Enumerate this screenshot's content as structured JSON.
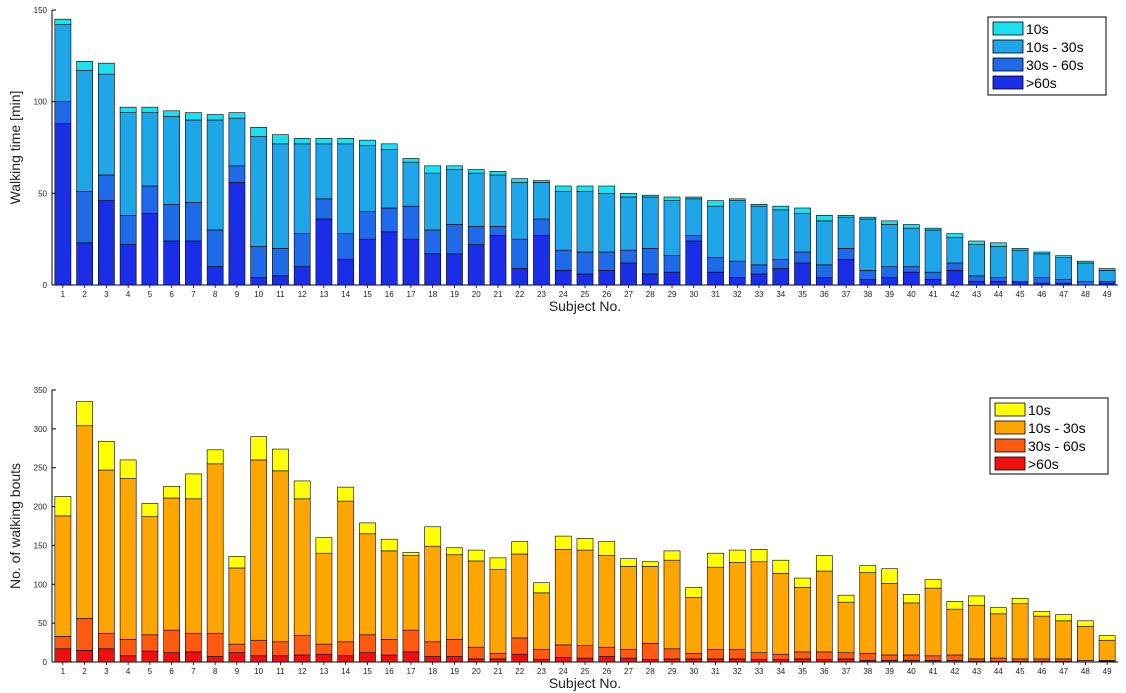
{
  "chart_data": [
    {
      "type": "bar",
      "stacked": true,
      "xlabel": "Subject No.",
      "ylabel": "Walking time [min]",
      "ylim": [
        0,
        150
      ],
      "yticks": [
        0,
        50,
        100,
        150
      ],
      "legend_position": "top-right",
      "categories": [
        "1",
        "2",
        "3",
        "4",
        "5",
        "6",
        "7",
        "8",
        "9",
        "10",
        "11",
        "12",
        "13",
        "14",
        "15",
        "16",
        "17",
        "18",
        "19",
        "20",
        "21",
        "22",
        "23",
        "24",
        "25",
        "26",
        "27",
        "28",
        "29",
        "30",
        "31",
        "32",
        "33",
        "34",
        "35",
        "36",
        "37",
        "38",
        "39",
        "40",
        "41",
        "42",
        "43",
        "44",
        "45",
        "46",
        "47",
        "48",
        "49"
      ],
      "series": [
        {
          "name": ">60s",
          "color": "#1a2ee8",
          "values": [
            88,
            23,
            46,
            22,
            39,
            24,
            24,
            10,
            56,
            4,
            5,
            10,
            36,
            14,
            25,
            29,
            25,
            17,
            17,
            22,
            27,
            9,
            27,
            8,
            6,
            8,
            12,
            6,
            7,
            24,
            7,
            4,
            6,
            9,
            12,
            4,
            14,
            3,
            4,
            7,
            3,
            8,
            2,
            2,
            2,
            1,
            1,
            0,
            1
          ]
        },
        {
          "name": "30s - 60s",
          "color": "#1e6ae8",
          "values": [
            12,
            28,
            14,
            16,
            15,
            20,
            21,
            20,
            9,
            17,
            15,
            18,
            11,
            14,
            15,
            13,
            18,
            13,
            16,
            10,
            5,
            16,
            9,
            11,
            12,
            10,
            7,
            14,
            9,
            3,
            8,
            9,
            5,
            5,
            6,
            7,
            6,
            5,
            6,
            3,
            4,
            4,
            3,
            2,
            0,
            3,
            2,
            2,
            1
          ]
        },
        {
          "name": "10s - 30s",
          "color": "#1fa6e8",
          "values": [
            42,
            66,
            55,
            56,
            40,
            48,
            45,
            60,
            26,
            60,
            57,
            49,
            30,
            49,
            36,
            32,
            24,
            31,
            30,
            29,
            28,
            31,
            20,
            32,
            33,
            32,
            29,
            28,
            30,
            20,
            28,
            33,
            32,
            27,
            21,
            24,
            17,
            28,
            23,
            21,
            23,
            14,
            17,
            17,
            17,
            13,
            12,
            10,
            6
          ]
        },
        {
          "name": "10s",
          "color": "#1ce0f0",
          "values": [
            3,
            5,
            6,
            3,
            3,
            3,
            4,
            3,
            3,
            5,
            5,
            3,
            3,
            3,
            3,
            3,
            2,
            4,
            2,
            2,
            2,
            2,
            1,
            3,
            3,
            4,
            2,
            1,
            2,
            1,
            3,
            1,
            1,
            2,
            3,
            3,
            1,
            1,
            2,
            2,
            1,
            2,
            2,
            2,
            1,
            1,
            1,
            1,
            1
          ]
        }
      ]
    },
    {
      "type": "bar",
      "stacked": true,
      "xlabel": "Subject No.",
      "ylabel": "No. of walking bouts",
      "ylim": [
        0,
        350
      ],
      "yticks": [
        0,
        50,
        100,
        150,
        200,
        250,
        300,
        350
      ],
      "legend_position": "top-right",
      "categories": [
        "1",
        "2",
        "3",
        "4",
        "5",
        "6",
        "7",
        "8",
        "9",
        "10",
        "11",
        "12",
        "13",
        "14",
        "15",
        "16",
        "17",
        "18",
        "19",
        "20",
        "21",
        "22",
        "23",
        "24",
        "25",
        "26",
        "27",
        "28",
        "29",
        "30",
        "31",
        "32",
        "33",
        "34",
        "35",
        "36",
        "37",
        "38",
        "39",
        "40",
        "41",
        "42",
        "43",
        "44",
        "45",
        "46",
        "47",
        "48",
        "49"
      ],
      "series": [
        {
          "name": ">60s",
          "color": "#ee1010",
          "values": [
            17,
            15,
            17,
            8,
            14,
            12,
            13,
            7,
            12,
            8,
            8,
            9,
            10,
            8,
            12,
            9,
            13,
            7,
            7,
            4,
            4,
            10,
            3,
            6,
            5,
            7,
            5,
            3,
            4,
            4,
            4,
            4,
            3,
            3,
            4,
            3,
            4,
            2,
            2,
            2,
            2,
            2,
            1,
            1,
            1,
            1,
            1,
            0,
            1
          ]
        },
        {
          "name": "30s - 60s",
          "color": "#ff5a10",
          "values": [
            16,
            41,
            20,
            21,
            21,
            29,
            24,
            30,
            11,
            20,
            18,
            25,
            13,
            18,
            23,
            20,
            28,
            19,
            22,
            15,
            7,
            21,
            13,
            16,
            16,
            12,
            11,
            21,
            13,
            7,
            12,
            12,
            9,
            7,
            9,
            10,
            8,
            9,
            7,
            7,
            6,
            7,
            3,
            4,
            3,
            3,
            3,
            2,
            1
          ]
        },
        {
          "name": "10s - 30s",
          "color": "#ffa500",
          "values": [
            155,
            248,
            210,
            207,
            152,
            170,
            173,
            218,
            98,
            232,
            220,
            176,
            117,
            181,
            130,
            114,
            96,
            123,
            109,
            111,
            108,
            108,
            73,
            123,
            123,
            118,
            107,
            99,
            114,
            72,
            106,
            112,
            117,
            104,
            83,
            104,
            65,
            104,
            92,
            67,
            87,
            59,
            69,
            57,
            71,
            55,
            49,
            44,
            26
          ]
        },
        {
          "name": "10s",
          "color": "#ffff00",
          "values": [
            25,
            31,
            37,
            24,
            17,
            15,
            32,
            18,
            15,
            30,
            28,
            23,
            20,
            18,
            14,
            15,
            4,
            25,
            9,
            14,
            15,
            16,
            13,
            17,
            15,
            18,
            10,
            6,
            12,
            13,
            18,
            16,
            16,
            17,
            12,
            20,
            9,
            9,
            19,
            11,
            11,
            10,
            12,
            8,
            7,
            6,
            8,
            7,
            6
          ]
        }
      ]
    }
  ]
}
